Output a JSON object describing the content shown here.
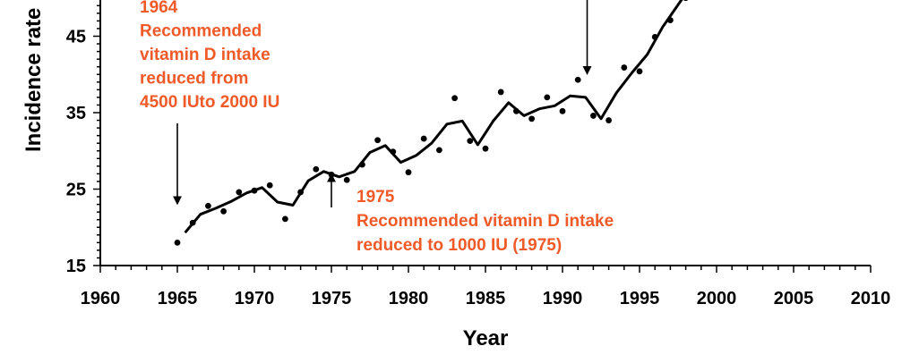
{
  "chart_data": {
    "type": "line",
    "xlabel": "Year",
    "ylabel": "Incidence rate",
    "xlim": [
      1960,
      2010
    ],
    "ylim": [
      15,
      55
    ],
    "x_ticks": [
      1960,
      1965,
      1970,
      1975,
      1980,
      1985,
      1990,
      1995,
      2000,
      2005,
      2010
    ],
    "y_ticks": [
      15,
      25,
      35,
      45
    ],
    "grid": false,
    "colors": {
      "line": "#000000",
      "points": "#000000",
      "annotation": "#f05a28"
    },
    "series": [
      {
        "kind": "points",
        "x": [
          1965,
          1966,
          1967,
          1968,
          1969,
          1970,
          1971,
          1972,
          1973,
          1974,
          1975,
          1976,
          1977,
          1978,
          1979,
          1980,
          1981,
          1982,
          1983,
          1984,
          1985,
          1986,
          1987,
          1988,
          1989,
          1990,
          1991,
          1992,
          1993,
          1994,
          1995,
          1996,
          1997,
          1998
        ],
        "y": [
          18.0,
          20.6,
          22.8,
          22.1,
          24.6,
          24.8,
          25.5,
          21.1,
          24.6,
          27.6,
          26.9,
          26.2,
          28.2,
          31.4,
          29.9,
          27.2,
          31.6,
          30.1,
          36.9,
          31.3,
          30.3,
          37.7,
          35.2,
          34.2,
          37.0,
          35.2,
          39.3,
          34.6,
          34.0,
          40.9,
          40.4,
          44.9,
          47.1,
          50.0
        ]
      },
      {
        "kind": "line",
        "x": [
          1965.5,
          1966.5,
          1967.5,
          1968.5,
          1969.5,
          1970.5,
          1971.5,
          1972.5,
          1973.5,
          1974.5,
          1975.5,
          1976.5,
          1977.5,
          1978.5,
          1979.5,
          1980.5,
          1981.5,
          1982.5,
          1983.5,
          1984.5,
          1985.5,
          1986.5,
          1987.5,
          1988.5,
          1989.5,
          1990.5,
          1991.5,
          1992.5,
          1993.5,
          1994.5,
          1995.5,
          1996.5,
          1997.5,
          1998.5
        ],
        "y": [
          19.3,
          21.7,
          22.5,
          23.4,
          24.5,
          25.2,
          23.3,
          22.9,
          26.1,
          27.3,
          26.6,
          27.3,
          29.8,
          30.7,
          28.5,
          29.4,
          31.0,
          33.5,
          33.9,
          30.8,
          33.9,
          36.3,
          34.6,
          35.5,
          35.9,
          37.2,
          37.0,
          34.2,
          37.6,
          40.2,
          42.6,
          46.2,
          49.1,
          52.0
        ]
      }
    ],
    "annotations": [
      {
        "lines": [
          "1964",
          "Recommended",
          "vitamin D intake",
          "reduced from",
          "4500 IUto 2000 IU"
        ],
        "arrow_x": 1965,
        "arrow_from_y": 33.6,
        "arrow_to_y": 23.5,
        "direction": "down"
      },
      {
        "lines": [
          "1975",
          "Recommended vitamin D intake",
          "reduced to 1000 IU (1975)"
        ],
        "arrow_x": 1975,
        "arrow_from_y": 22.6,
        "arrow_to_y": 26.5,
        "direction": "up"
      },
      {
        "lines": [],
        "arrow_x": 1991.6,
        "arrow_from_y": 56,
        "arrow_to_y": 40.5,
        "direction": "down"
      }
    ]
  }
}
